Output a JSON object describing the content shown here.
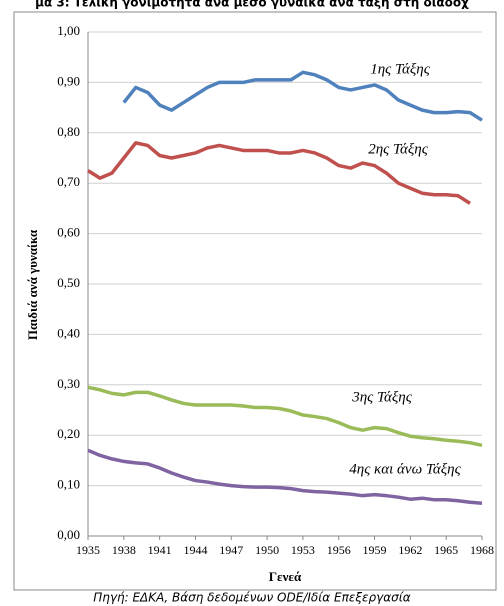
{
  "chart_data": {
    "type": "line",
    "title": "μα 3: Τελική γονιμότητα ανά μέσο γυναίκα ανά τάξη στη διαδοχ",
    "y_label": "Παιδιά ανά γυναίκα",
    "x_label": "Γενεά",
    "source": "Πηγή: ΕΔΚΑ, Βάση δεδομένων ODE/Ιδία Επεξεργασία",
    "x": [
      1935,
      1936,
      1937,
      1938,
      1939,
      1940,
      1941,
      1942,
      1943,
      1944,
      1945,
      1946,
      1947,
      1948,
      1949,
      1950,
      1951,
      1952,
      1953,
      1954,
      1955,
      1956,
      1957,
      1958,
      1959,
      1960,
      1961,
      1962,
      1963,
      1964,
      1965,
      1966,
      1967,
      1968
    ],
    "xlim": [
      1935,
      1968
    ],
    "xticks": [
      1935,
      1938,
      1941,
      1944,
      1947,
      1950,
      1953,
      1956,
      1959,
      1962,
      1965,
      1968
    ],
    "ylim": [
      0,
      1
    ],
    "yticks": [
      {
        "value": 0,
        "label": "0,00"
      },
      {
        "value": 0.1,
        "label": "0,10"
      },
      {
        "value": 0.2,
        "label": "0,20"
      },
      {
        "value": 0.3,
        "label": "0,30"
      },
      {
        "value": 0.4,
        "label": "0,40"
      },
      {
        "value": 0.5,
        "label": "0,50"
      },
      {
        "value": 0.6,
        "label": "0,60"
      },
      {
        "value": 0.7,
        "label": "0,70"
      },
      {
        "value": 0.8,
        "label": "0,80"
      },
      {
        "value": 0.9,
        "label": "0,90"
      },
      {
        "value": 1,
        "label": "1,00"
      }
    ],
    "grid": true,
    "series": [
      {
        "name": "1ης Τάξης",
        "color": "#4f81bd",
        "values": [
          null,
          null,
          null,
          0.86,
          0.89,
          0.88,
          0.855,
          0.845,
          0.86,
          0.875,
          0.89,
          0.9,
          0.9,
          0.9,
          0.905,
          0.905,
          0.905,
          0.905,
          0.92,
          0.915,
          0.905,
          0.89,
          0.885,
          0.89,
          0.895,
          0.885,
          0.865,
          0.855,
          0.845,
          0.84,
          0.84,
          0.842,
          0.84,
          0.825
        ]
      },
      {
        "name": "2ης Τάξης",
        "color": "#c0504d",
        "values": [
          0.725,
          0.71,
          0.72,
          0.75,
          0.78,
          0.775,
          0.755,
          0.75,
          0.755,
          0.76,
          0.77,
          0.775,
          0.77,
          0.765,
          0.765,
          0.765,
          0.76,
          0.76,
          0.765,
          0.76,
          0.75,
          0.735,
          0.73,
          0.74,
          0.735,
          0.72,
          0.7,
          0.69,
          0.68,
          0.677,
          0.677,
          0.675,
          0.66,
          null
        ]
      },
      {
        "name": "3ης Τάξης",
        "color": "#9bbb59",
        "values": [
          0.295,
          0.29,
          0.283,
          0.28,
          0.285,
          0.285,
          0.278,
          0.27,
          0.263,
          0.26,
          0.26,
          0.26,
          0.26,
          0.258,
          0.255,
          0.255,
          0.253,
          0.248,
          0.24,
          0.237,
          0.233,
          0.225,
          0.215,
          0.21,
          0.215,
          0.213,
          0.205,
          0.198,
          0.195,
          0.193,
          0.19,
          0.188,
          0.185,
          0.18
        ]
      },
      {
        "name": "4ης και άνω Τάξης",
        "color": "#8064a2",
        "values": [
          0.17,
          0.16,
          0.153,
          0.148,
          0.145,
          0.143,
          0.135,
          0.125,
          0.117,
          0.11,
          0.107,
          0.103,
          0.1,
          0.098,
          0.097,
          0.097,
          0.096,
          0.094,
          0.09,
          0.088,
          0.087,
          0.085,
          0.083,
          0.08,
          0.082,
          0.08,
          0.077,
          0.073,
          0.075,
          0.072,
          0.072,
          0.07,
          0.067,
          0.065
        ]
      }
    ]
  }
}
